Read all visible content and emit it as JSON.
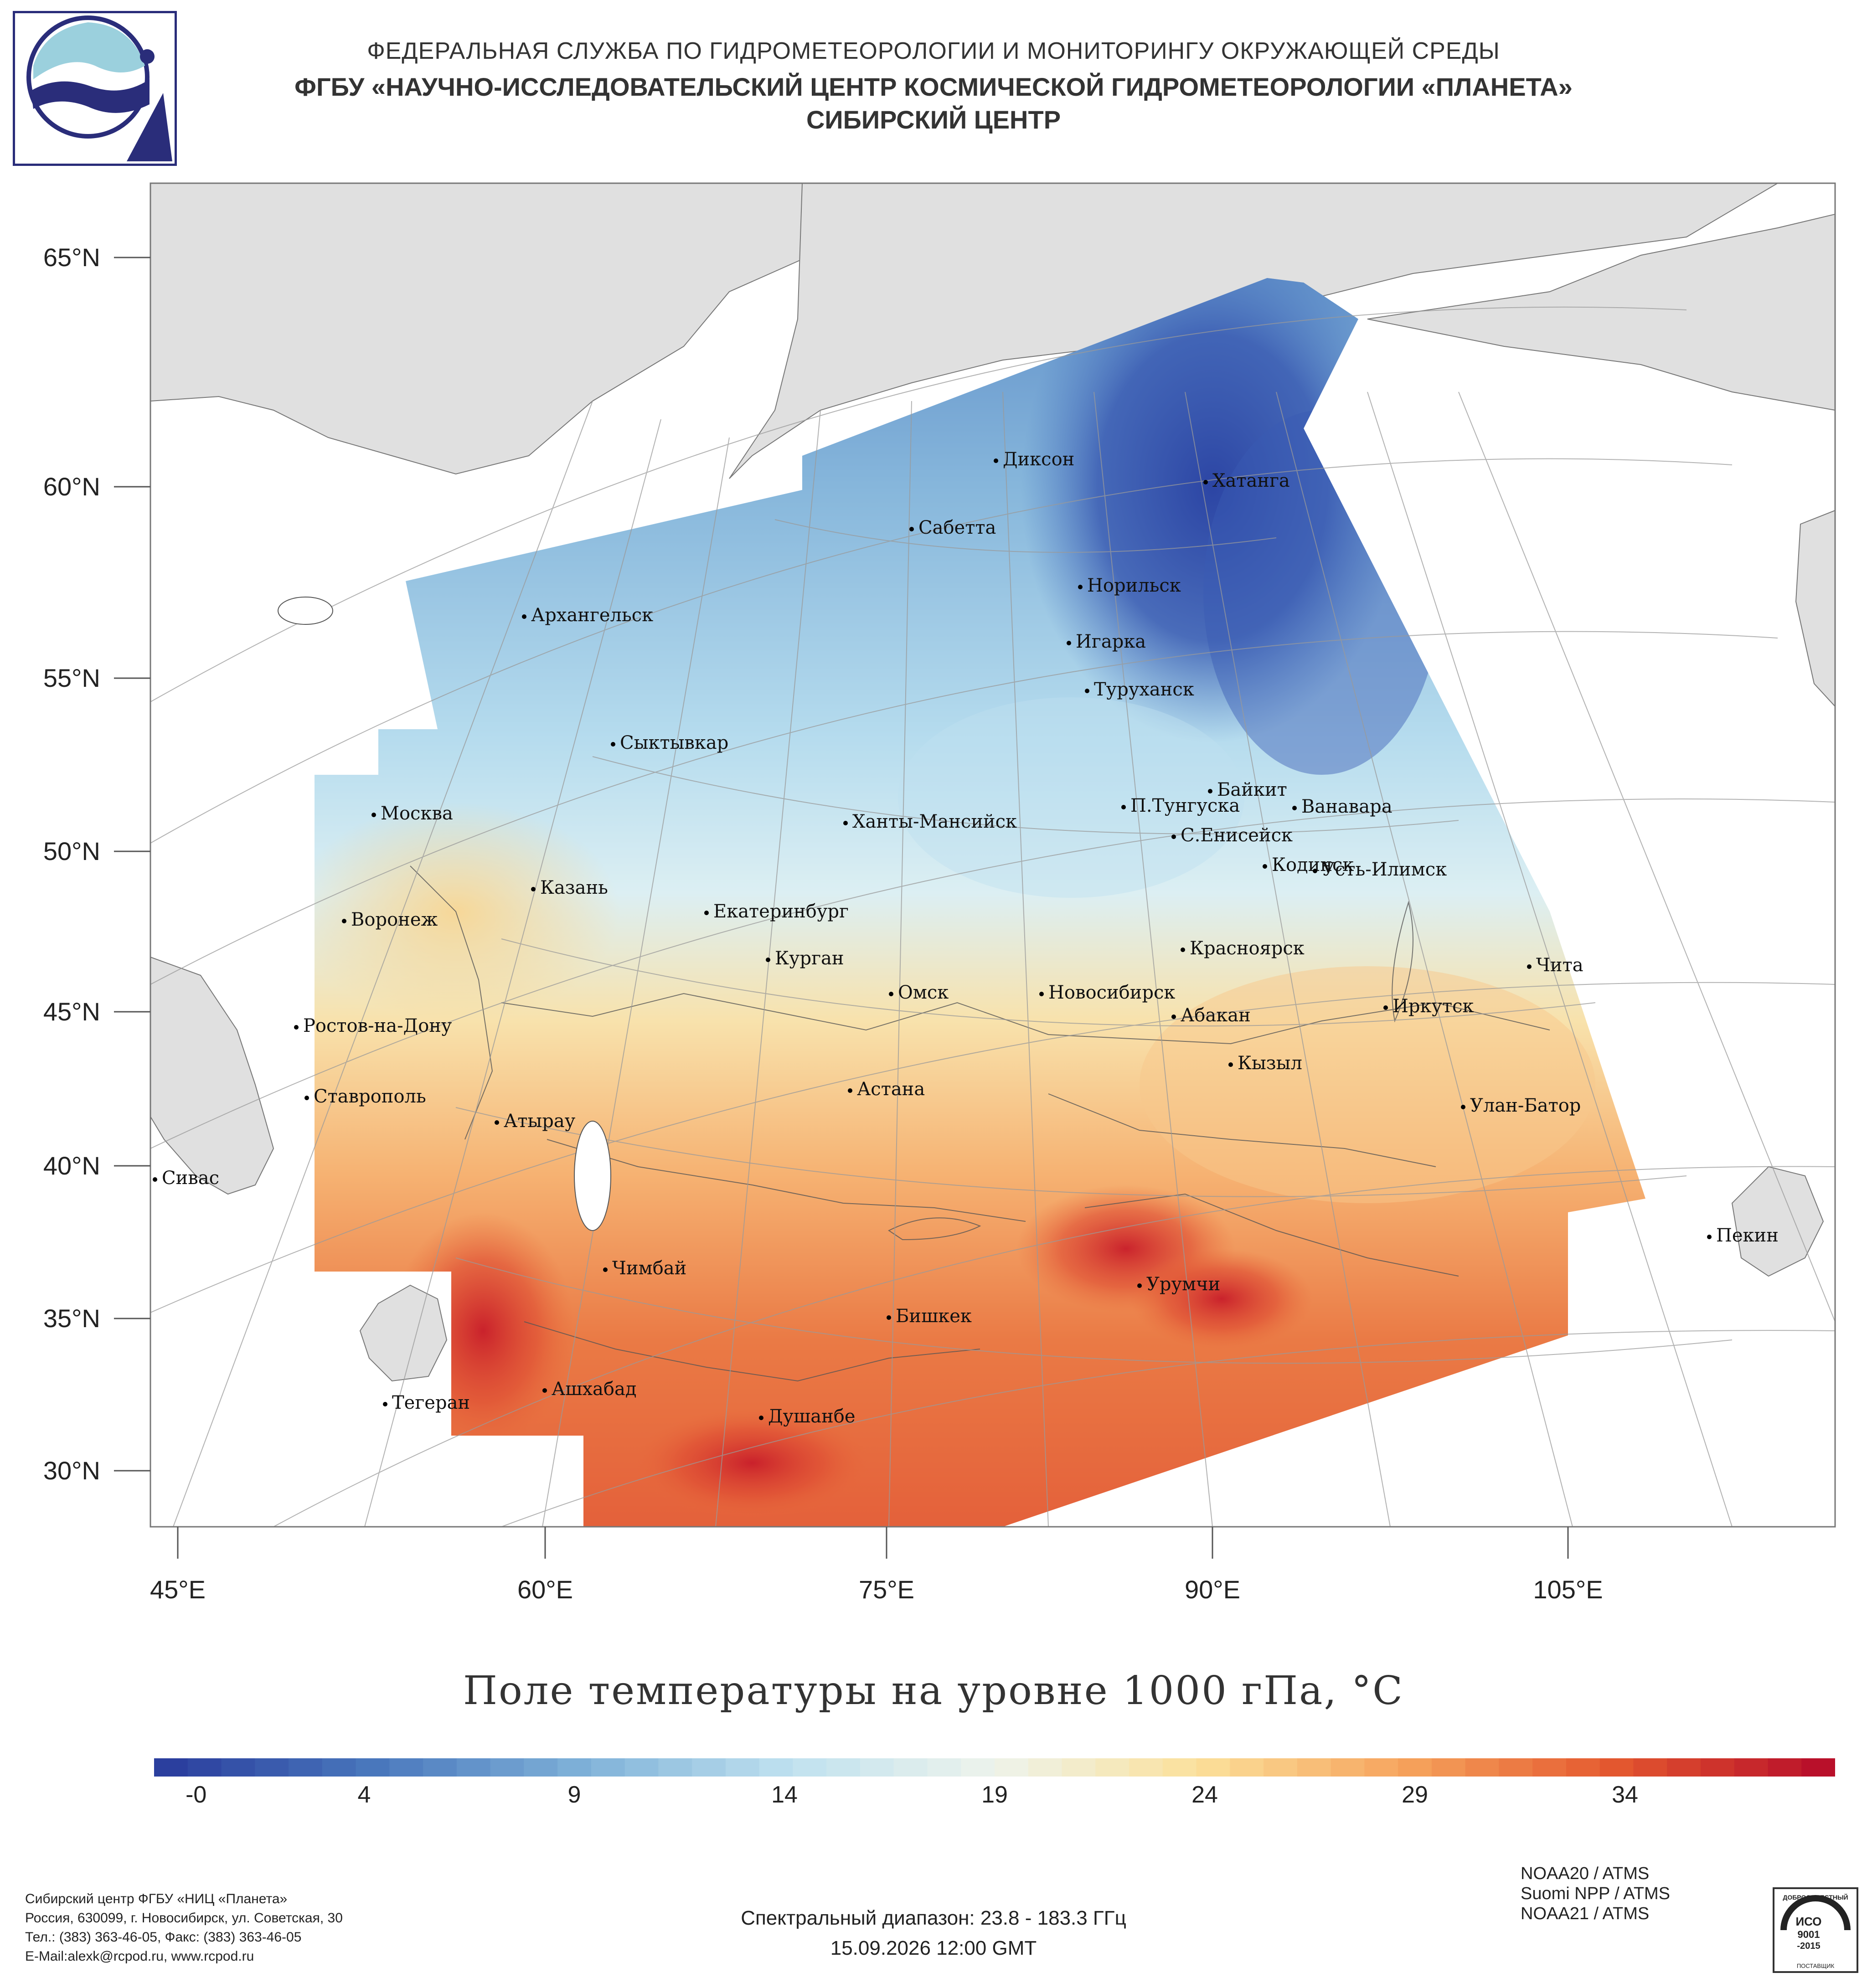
{
  "header": {
    "agency": "ФЕДЕРАЛЬНАЯ СЛУЖБА ПО ГИДРОМЕТЕОРОЛОГИИ И МОНИТОРИНГУ ОКРУЖАЮЩЕЙ СРЕДЫ",
    "institute": "ФГБУ «НАУЧНО-ИССЛЕДОВАТЕЛЬСКИЙ ЦЕНТР КОСМИЧЕСКОЙ ГИДРОМЕТЕОРОЛОГИИ «ПЛАНЕТА»",
    "center": "СИБИРСКИЙ ЦЕНТР"
  },
  "map": {
    "lat_labels": [
      "65°N",
      "60°N",
      "55°N",
      "50°N",
      "45°N",
      "40°N",
      "35°N",
      "30°N"
    ],
    "lon_labels": [
      "45°E",
      "60°E",
      "75°E",
      "90°E",
      "105°E"
    ],
    "cities": [
      "Диксон",
      "Хатанга",
      "Сабетта",
      "Норильск",
      "Архангельск",
      "Игарка",
      "Туруханск",
      "Сыктывкар",
      "Байкит",
      "П.Тунгуска",
      "Ванавара",
      "Москва",
      "Ханты-Мансийск",
      "С.Енисейск",
      "Кодинск",
      "Усть-Илимск",
      "Казань",
      "Воронеж",
      "Екатеринбург",
      "Красноярск",
      "Курган",
      "Чита",
      "Омск",
      "Новосибирск",
      "Иркутск",
      "Ростов-на-Дону",
      "Абакан",
      "Кызыл",
      "Астана",
      "Ставрополь",
      "Улан-Батор",
      "Атырау",
      "Сивас",
      "Пекин",
      "Чимбай",
      "Урумчи",
      "Бишкек",
      "Ашхабад",
      "Тегеран",
      "Душанбе"
    ],
    "colors": {
      "land": "#e0e0e0",
      "sea": "#ffffff",
      "cold": "#2b3f9e",
      "warm": "#c8102e"
    }
  },
  "chart_data": {
    "type": "heatmap",
    "title": "Поле температуры на уровне 1000 гПа, °С",
    "colorbar_ticks": [
      "-0",
      "4",
      "9",
      "14",
      "19",
      "24",
      "29",
      "34"
    ],
    "colorbar_range": [
      -1,
      39
    ],
    "colorscale": [
      "#2b3f9e",
      "#4a78bd",
      "#7fb1d8",
      "#bfe1ef",
      "#eef4ec",
      "#fbe09a",
      "#f6a35c",
      "#e4582f",
      "#b9102a"
    ]
  },
  "footer": {
    "org": "Сибирский центр ФГБУ «НИЦ «Планета»",
    "address": "Россия, 630099, г. Новосибирск, ул. Советская, 30",
    "phone": "Тел.: (383) 363-46-05, Факс: (383) 363-46-05",
    "email": "E-Mail:alexk@rcpod.ru, www.rcpod.ru",
    "spectral": "Спектральный диапазон: 23.8 - 183.3 ГГц",
    "datetime": "15.09.2026 12:00 GMT",
    "satellites": [
      "NOAA20 / ATMS",
      "Suomi NPP / ATMS",
      "NOAA21 / ATMS"
    ],
    "iso_badge": {
      "top": "ДОБРОСОВЕСТНЫЙ",
      "mid": "ИСО",
      "num": "9001",
      "year": "-2015",
      "bottom": "ПОСТАВЩИК"
    }
  }
}
